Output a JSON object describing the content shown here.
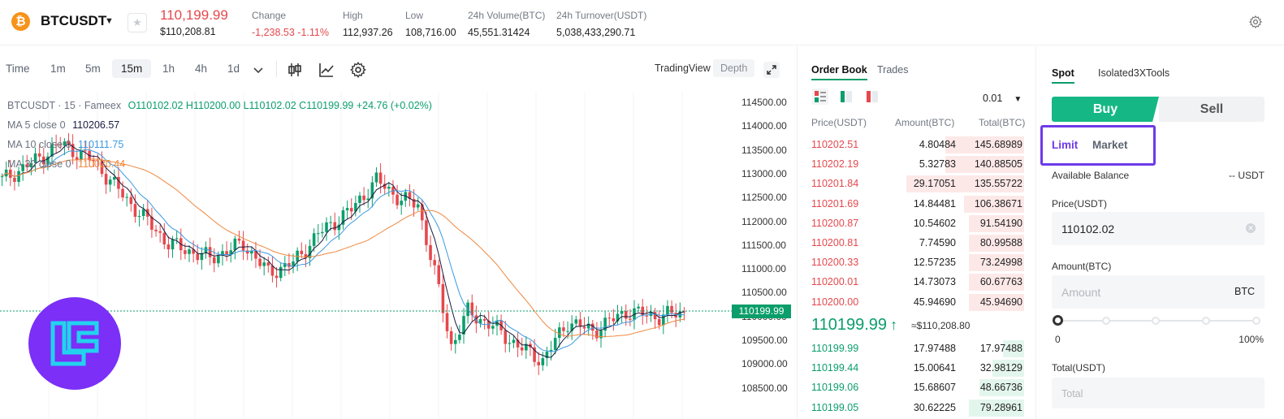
{
  "ticker": {
    "pair": "BTCUSDT",
    "last_price": "110,199.99",
    "last_price_usd": "$110,208.81",
    "stats": [
      {
        "label": "Change",
        "value": "-1,238.53 -1.11%",
        "negative": true
      },
      {
        "label": "High",
        "value": "112,937.26"
      },
      {
        "label": "Low",
        "value": "108,716.00"
      },
      {
        "label": "24h Volume(BTC)",
        "value": "45,551.31424"
      },
      {
        "label": "24h Turnover(USDT)",
        "value": "5,038,433,290.71"
      }
    ]
  },
  "chart_toolbar": {
    "timeframes": [
      "Time",
      "1m",
      "5m",
      "15m",
      "1h",
      "4h",
      "1d"
    ],
    "active_timeframe": "15m",
    "views": [
      "TradingView",
      "Depth"
    ]
  },
  "chart_legend": {
    "title": "BTCUSDT · 15 · Fameex",
    "ohlc": "O110102.02 H110200.00 L110102.02 C110199.99 +24.76 (+0.02%)",
    "ma5_label": "MA 5 close 0",
    "ma5_value": "110206.57",
    "ma10_label": "MA 10 close 0",
    "ma10_value": "110111.75",
    "ma30_label": "MA 30 close 0",
    "ma30_value": "110020.44"
  },
  "price_axis": [
    "114500.00",
    "114000.00",
    "113500.00",
    "113000.00",
    "112500.00",
    "112000.00",
    "111500.00",
    "111000.00",
    "110500.00",
    "110000.00",
    "109500.00",
    "109000.00",
    "108500.00"
  ],
  "current_price_tag": "110199.99",
  "colors": {
    "up": "#0b9e6b",
    "down": "#e5484d",
    "ma5": "#5a2a1a",
    "ma10": "#3b9ae1",
    "ma30": "#f0883e",
    "brand": "#7b2ff7",
    "highlight": "#6d3ae8"
  },
  "order_book": {
    "tabs": [
      "Order Book",
      "Trades"
    ],
    "precision": "0.01",
    "headers": [
      "Price(USDT)",
      "Amount(BTC)",
      "Total(BTC)"
    ],
    "asks": [
      {
        "price": "110202.51",
        "amount": "4.80484",
        "total": "145.68989",
        "depth": 0.37
      },
      {
        "price": "110202.19",
        "amount": "5.32783",
        "total": "140.88505",
        "depth": 0.37
      },
      {
        "price": "110201.84",
        "amount": "29.17051",
        "total": "135.55722",
        "depth": 0.55
      },
      {
        "price": "110201.69",
        "amount": "14.84481",
        "total": "106.38671",
        "depth": 0.28
      },
      {
        "price": "110200.87",
        "amount": "10.54602",
        "total": "91.54190",
        "depth": 0.26
      },
      {
        "price": "110200.81",
        "amount": "7.74590",
        "total": "80.99588",
        "depth": 0.26
      },
      {
        "price": "110200.33",
        "amount": "12.57235",
        "total": "73.24998",
        "depth": 0.26
      },
      {
        "price": "110200.01",
        "amount": "14.73073",
        "total": "60.67763",
        "depth": 0.26
      },
      {
        "price": "110200.00",
        "amount": "45.94690",
        "total": "45.94690",
        "depth": 0.26
      }
    ],
    "mid_price": "110199.99",
    "mid_usd": "≈$110,208.80",
    "bids": [
      {
        "price": "110199.99",
        "amount": "17.97488",
        "total": "17.97488",
        "depth": 0.1
      },
      {
        "price": "110199.44",
        "amount": "15.00641",
        "total": "32.98129",
        "depth": 0.15
      },
      {
        "price": "110199.06",
        "amount": "15.68607",
        "total": "48.66736",
        "depth": 0.21
      },
      {
        "price": "110199.05",
        "amount": "30.62225",
        "total": "79.28961",
        "depth": 0.26
      }
    ]
  },
  "trade_panel": {
    "tabs": [
      "Spot",
      "Isolated3X",
      "Tools"
    ],
    "buy_label": "Buy",
    "sell_label": "Sell",
    "order_types": [
      "Limit",
      "Market"
    ],
    "available_label": "Available Balance",
    "available_value": "-- USDT",
    "price_label": "Price(USDT)",
    "price_value": "110102.02",
    "amount_label": "Amount(BTC)",
    "amount_placeholder": "Amount",
    "amount_unit": "BTC",
    "slider_min": "0",
    "slider_max": "100%",
    "slider_value": 0,
    "total_label": "Total(USDT)",
    "total_placeholder": "Total"
  }
}
